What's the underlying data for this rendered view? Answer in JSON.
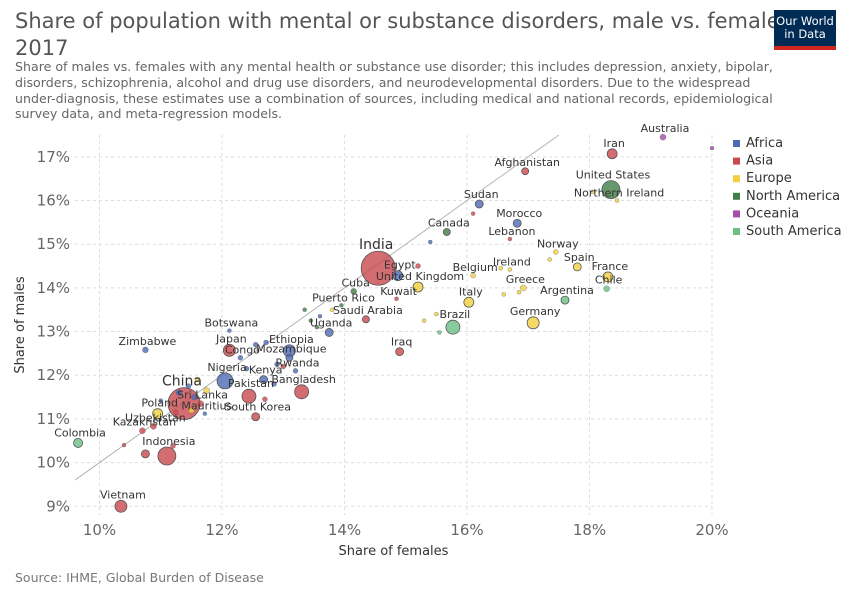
{
  "header": {
    "title": "Share of population with mental or substance disorders, male vs. females,",
    "year": "2017",
    "subtitle_lines": [
      "Share of males vs. females with any mental health or substance use disorder; this includes depression, anxiety, bipolar,",
      "disorders, schizophrenia, alcohol and drug use disorders, and neurodevelopmental disorders. Due to the widespread",
      "under-diagnosis, these estimates use a combination of sources, including medical and national records, epidemiological",
      "survey data, and meta-regression models."
    ],
    "logo_line1": "Our World",
    "logo_line2": "in Data"
  },
  "footer": {
    "source": "Source: IHME, Global Burden of Disease"
  },
  "colors": {
    "Africa": "#4c6bb5",
    "Asia": "#c9494e",
    "Europe": "#f3cf3e",
    "North America": "#3f7e45",
    "Oceania": "#a34ea8",
    "South America": "#6cbf83"
  },
  "chart_data": {
    "type": "scatter",
    "xlabel": "Share of females",
    "ylabel": "Share of males",
    "xlim": [
      9.6,
      20.0
    ],
    "ylim": [
      8.8,
      17.5
    ],
    "x_ticks": [
      10,
      12,
      14,
      16,
      18,
      20
    ],
    "x_tick_labels": [
      "10%",
      "12%",
      "14%",
      "16%",
      "18%",
      "20%"
    ],
    "y_ticks": [
      9,
      10,
      11,
      12,
      13,
      14,
      15,
      16,
      17
    ],
    "y_tick_labels": [
      "9%",
      "10%",
      "11%",
      "12%",
      "13%",
      "14%",
      "15%",
      "16%",
      "17%"
    ],
    "grid": true,
    "reference_line": "y = x",
    "legend_position": "right",
    "legend": [
      "Africa",
      "Asia",
      "Europe",
      "North America",
      "Oceania",
      "South America"
    ],
    "points": [
      {
        "name": "Iran",
        "region": "Asia",
        "x": 18.37,
        "y": 17.07,
        "r": 5,
        "label": "Iran"
      },
      {
        "name": "Australia",
        "region": "Oceania",
        "x": 19.2,
        "y": 17.45,
        "r": 3,
        "label": "Australia"
      },
      {
        "name": "United States",
        "region": "North America",
        "x": 18.35,
        "y": 16.25,
        "r": 9,
        "label": "United States"
      },
      {
        "name": "Northern Ireland",
        "region": "Europe",
        "x": 18.45,
        "y": 16.0,
        "r": 2,
        "label": "Northern Ireland"
      },
      {
        "name": "Afghanistan",
        "region": "Asia",
        "x": 16.95,
        "y": 16.67,
        "r": 3.5,
        "label": "Afghanistan"
      },
      {
        "name": "Sudan",
        "region": "Africa",
        "x": 16.2,
        "y": 15.92,
        "r": 4,
        "label": "Sudan"
      },
      {
        "name": "Morocco",
        "region": "Africa",
        "x": 16.82,
        "y": 15.48,
        "r": 4,
        "label": "Morocco"
      },
      {
        "name": "Canada",
        "region": "North America",
        "x": 15.67,
        "y": 15.28,
        "r": 3.5,
        "label": "Canada"
      },
      {
        "name": "Lebanon",
        "region": "Asia",
        "x": 16.7,
        "y": 15.12,
        "r": 2,
        "label": "Lebanon"
      },
      {
        "name": "India",
        "region": "Asia",
        "x": 14.55,
        "y": 14.45,
        "r": 17,
        "label": "India"
      },
      {
        "name": "Egypt",
        "region": "Africa",
        "x": 14.87,
        "y": 14.28,
        "r": 5,
        "label": "Egypt"
      },
      {
        "name": "Norway",
        "region": "Europe",
        "x": 17.45,
        "y": 14.82,
        "r": 2.5,
        "label": "Norway"
      },
      {
        "name": "Spain",
        "region": "Europe",
        "x": 17.8,
        "y": 14.48,
        "r": 4,
        "label": "Spain"
      },
      {
        "name": "France",
        "region": "Europe",
        "x": 18.3,
        "y": 14.25,
        "r": 5,
        "label": "France"
      },
      {
        "name": "Chile",
        "region": "South America",
        "x": 18.28,
        "y": 13.98,
        "r": 3,
        "label": "Chile"
      },
      {
        "name": "Ireland",
        "region": "Europe",
        "x": 16.7,
        "y": 14.42,
        "r": 2,
        "label": "Ireland"
      },
      {
        "name": "Belgium",
        "region": "Europe",
        "x": 16.1,
        "y": 14.28,
        "r": 2.5,
        "label": "Belgium"
      },
      {
        "name": "United Kingdom",
        "region": "Europe",
        "x": 15.2,
        "y": 14.02,
        "r": 5,
        "label": "United Kingdom"
      },
      {
        "name": "Greece",
        "region": "Europe",
        "x": 16.92,
        "y": 14.0,
        "r": 3,
        "label": "Greece"
      },
      {
        "name": "Argentina",
        "region": "South America",
        "x": 17.6,
        "y": 13.72,
        "r": 4,
        "label": "Argentina"
      },
      {
        "name": "Italy",
        "region": "Europe",
        "x": 16.03,
        "y": 13.67,
        "r": 5,
        "label": "Italy"
      },
      {
        "name": "Kuwait",
        "region": "Asia",
        "x": 14.85,
        "y": 13.75,
        "r": 2,
        "label": "Kuwait"
      },
      {
        "name": "Cuba",
        "region": "North America",
        "x": 14.15,
        "y": 13.92,
        "r": 3,
        "label": "Cuba"
      },
      {
        "name": "Puerto Rico",
        "region": "North America",
        "x": 13.95,
        "y": 13.6,
        "r": 2,
        "label": "Puerto Rico"
      },
      {
        "name": "Saudi Arabia",
        "region": "Asia",
        "x": 14.35,
        "y": 13.28,
        "r": 3.5,
        "label": "Saudi Arabia"
      },
      {
        "name": "Germany",
        "region": "Europe",
        "x": 17.08,
        "y": 13.2,
        "r": 6,
        "label": "Germany"
      },
      {
        "name": "Brazil",
        "region": "South America",
        "x": 15.77,
        "y": 13.1,
        "r": 7,
        "label": "Brazil"
      },
      {
        "name": "Uganda",
        "region": "Africa",
        "x": 13.75,
        "y": 12.98,
        "r": 4,
        "label": "Uganda"
      },
      {
        "name": "Botswana",
        "region": "Africa",
        "x": 12.12,
        "y": 13.02,
        "r": 2,
        "label": "Botswana"
      },
      {
        "name": "Zimbabwe",
        "region": "Africa",
        "x": 10.75,
        "y": 12.58,
        "r": 3,
        "label": "Zimbabwe"
      },
      {
        "name": "Japan",
        "region": "Asia",
        "x": 12.12,
        "y": 12.57,
        "r": 6,
        "label": "Japan"
      },
      {
        "name": "Congo",
        "region": "Africa",
        "x": 12.3,
        "y": 12.4,
        "r": 2.5,
        "label": "Congo"
      },
      {
        "name": "Ethiopia",
        "region": "Africa",
        "x": 13.1,
        "y": 12.56,
        "r": 6,
        "label": "Ethiopia"
      },
      {
        "name": "Mozambique",
        "region": "Africa",
        "x": 13.1,
        "y": 12.4,
        "r": 3.5,
        "label": "Mozambique"
      },
      {
        "name": "Rwanda",
        "region": "Africa",
        "x": 13.2,
        "y": 12.1,
        "r": 2.5,
        "label": "Rwanda"
      },
      {
        "name": "Iraq",
        "region": "Asia",
        "x": 14.9,
        "y": 12.54,
        "r": 4,
        "label": "Iraq"
      },
      {
        "name": "Nigeria",
        "region": "Africa",
        "x": 12.05,
        "y": 11.87,
        "r": 8,
        "label": "Nigeria"
      },
      {
        "name": "Kenya",
        "region": "Africa",
        "x": 12.68,
        "y": 11.9,
        "r": 4,
        "label": "Kenya"
      },
      {
        "name": "Pakistan",
        "region": "Asia",
        "x": 12.44,
        "y": 11.52,
        "r": 7,
        "label": "Pakistan"
      },
      {
        "name": "Bangladesh",
        "region": "Asia",
        "x": 13.3,
        "y": 11.62,
        "r": 7,
        "label": "Bangladesh"
      },
      {
        "name": "South Korea",
        "region": "Asia",
        "x": 12.55,
        "y": 11.05,
        "r": 4,
        "label": "South Korea"
      },
      {
        "name": "China",
        "region": "Asia",
        "x": 11.38,
        "y": 11.35,
        "r": 16,
        "label": "China"
      },
      {
        "name": "Sri Lanka",
        "region": "Asia",
        "x": 11.65,
        "y": 11.35,
        "r": 3,
        "label": "Sri Lanka"
      },
      {
        "name": "Mauritius",
        "region": "Africa",
        "x": 11.72,
        "y": 11.12,
        "r": 2,
        "label": "Mauritius"
      },
      {
        "name": "Poland",
        "region": "Europe",
        "x": 10.95,
        "y": 11.12,
        "r": 5,
        "label": "Poland"
      },
      {
        "name": "Uzbekistan",
        "region": "Asia",
        "x": 10.88,
        "y": 10.83,
        "r": 3,
        "label": "Uzbekistan"
      },
      {
        "name": "Kazakhstan",
        "region": "Asia",
        "x": 10.7,
        "y": 10.73,
        "r": 3,
        "label": "Kazakhstan"
      },
      {
        "name": "Indonesia",
        "region": "Asia",
        "x": 11.1,
        "y": 10.15,
        "r": 9,
        "label": "Indonesia"
      },
      {
        "name": "Colombia",
        "region": "South America",
        "x": 9.65,
        "y": 10.45,
        "r": 4.5,
        "label": "Colombia"
      },
      {
        "name": "Vietnam",
        "region": "Asia",
        "x": 10.35,
        "y": 9.0,
        "r": 6,
        "label": "Vietnam"
      },
      {
        "name": "",
        "region": "Asia",
        "x": 10.75,
        "y": 10.2,
        "r": 4
      },
      {
        "name": "",
        "region": "Asia",
        "x": 10.4,
        "y": 10.4,
        "r": 2
      },
      {
        "name": "",
        "region": "Asia",
        "x": 11.2,
        "y": 10.38,
        "r": 2.5
      },
      {
        "name": "",
        "region": "Africa",
        "x": 11.3,
        "y": 11.6,
        "r": 3
      },
      {
        "name": "",
        "region": "Africa",
        "x": 11.55,
        "y": 11.5,
        "r": 3
      },
      {
        "name": "",
        "region": "Africa",
        "x": 11.45,
        "y": 11.75,
        "r": 2.5
      },
      {
        "name": "",
        "region": "Europe",
        "x": 11.5,
        "y": 11.2,
        "r": 3
      },
      {
        "name": "",
        "region": "Europe",
        "x": 11.75,
        "y": 11.65,
        "r": 3
      },
      {
        "name": "",
        "region": "Europe",
        "x": 11.6,
        "y": 11.9,
        "r": 2.5
      },
      {
        "name": "",
        "region": "Asia",
        "x": 11.25,
        "y": 11.15,
        "r": 2.5
      },
      {
        "name": "",
        "region": "Africa",
        "x": 11.0,
        "y": 11.42,
        "r": 2
      },
      {
        "name": "",
        "region": "Africa",
        "x": 12.4,
        "y": 12.15,
        "r": 2.5
      },
      {
        "name": "",
        "region": "Africa",
        "x": 12.55,
        "y": 12.7,
        "r": 2.5
      },
      {
        "name": "",
        "region": "Africa",
        "x": 12.72,
        "y": 12.75,
        "r": 2.5
      },
      {
        "name": "",
        "region": "Africa",
        "x": 12.9,
        "y": 12.25,
        "r": 2.5
      },
      {
        "name": "",
        "region": "Africa",
        "x": 12.85,
        "y": 11.8,
        "r": 2.5
      },
      {
        "name": "",
        "region": "Asia",
        "x": 12.7,
        "y": 11.45,
        "r": 2.5
      },
      {
        "name": "",
        "region": "Asia",
        "x": 13.0,
        "y": 12.2,
        "r": 2.5
      },
      {
        "name": "",
        "region": "North America",
        "x": 13.45,
        "y": 13.25,
        "r": 2
      },
      {
        "name": "",
        "region": "North America",
        "x": 13.55,
        "y": 13.1,
        "r": 2
      },
      {
        "name": "",
        "region": "North America",
        "x": 13.35,
        "y": 13.5,
        "r": 2
      },
      {
        "name": "",
        "region": "Africa",
        "x": 13.6,
        "y": 13.35,
        "r": 2
      },
      {
        "name": "",
        "region": "Europe",
        "x": 13.8,
        "y": 13.5,
        "r": 2
      },
      {
        "name": "",
        "region": "Europe",
        "x": 15.3,
        "y": 13.25,
        "r": 2
      },
      {
        "name": "",
        "region": "Europe",
        "x": 15.5,
        "y": 13.4,
        "r": 2
      },
      {
        "name": "",
        "region": "Europe",
        "x": 16.6,
        "y": 13.85,
        "r": 2
      },
      {
        "name": "",
        "region": "Europe",
        "x": 16.85,
        "y": 13.9,
        "r": 2
      },
      {
        "name": "",
        "region": "Europe",
        "x": 17.35,
        "y": 14.65,
        "r": 2
      },
      {
        "name": "",
        "region": "Europe",
        "x": 16.55,
        "y": 14.45,
        "r": 2
      },
      {
        "name": "",
        "region": "Asia",
        "x": 15.2,
        "y": 14.5,
        "r": 2.5
      },
      {
        "name": "",
        "region": "Africa",
        "x": 15.4,
        "y": 15.05,
        "r": 2
      },
      {
        "name": "",
        "region": "Asia",
        "x": 16.1,
        "y": 15.7,
        "r": 2
      },
      {
        "name": "",
        "region": "Oceania",
        "x": 20.0,
        "y": 17.2,
        "r": 2
      },
      {
        "name": "",
        "region": "Europe",
        "x": 18.05,
        "y": 16.2,
        "r": 2
      },
      {
        "name": "",
        "region": "South America",
        "x": 15.55,
        "y": 12.98,
        "r": 2
      }
    ]
  }
}
